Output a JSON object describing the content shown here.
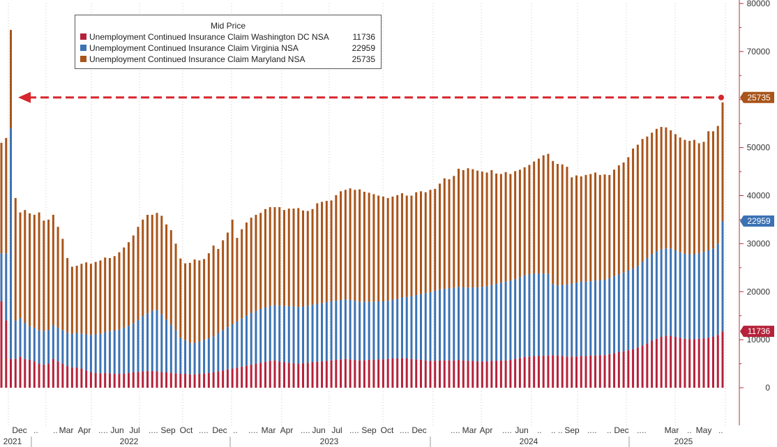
{
  "chart_data": {
    "type": "bar",
    "stacked": true,
    "title": "Mid Price",
    "y_axis": {
      "position": "right",
      "ylim": [
        -8000,
        80000
      ],
      "ticks": [
        0,
        10000,
        20000,
        30000,
        40000,
        50000,
        60000,
        70000,
        80000
      ]
    },
    "x_month_labels": [
      "Dec",
      "Mar",
      "Apr",
      "Jun",
      "Jul",
      "Sep",
      "Oct",
      "Dec",
      "Mar",
      "Apr",
      "Jun",
      "Jul",
      "Sep",
      "Oct",
      "Dec",
      "Mar",
      "Apr",
      "Jun",
      "Sep",
      "Dec",
      "Mar",
      "May"
    ],
    "x_year_labels": [
      "2021",
      "2022",
      "2023",
      "2024",
      "2025"
    ],
    "series": [
      {
        "name": "Unemployment Continued Insurance Claim Washington DC NSA",
        "color": "#b5213a",
        "last_value": "11736",
        "values": [
          18000,
          14000,
          6000,
          6000,
          6500,
          6000,
          5800,
          5500,
          5000,
          4800,
          5000,
          6000,
          5500,
          5000,
          4500,
          4200,
          4200,
          4000,
          3600,
          3200,
          3100,
          3000,
          3100,
          3000,
          2900,
          2900,
          3000,
          3100,
          3200,
          3300,
          3400,
          3500,
          3500,
          3400,
          3300,
          3200,
          3100,
          3000,
          2900,
          2900,
          2800,
          2800,
          2900,
          3000,
          3100,
          3200,
          3400,
          3600,
          3800,
          4000,
          4200,
          4400,
          4600,
          4800,
          5000,
          5200,
          5400,
          5600,
          5700,
          5500,
          5300,
          5200,
          5100,
          5000,
          5100,
          5200,
          5300,
          5400,
          5500,
          5600,
          5700,
          5800,
          5900,
          6000,
          5900,
          5800,
          5700,
          5700,
          5800,
          5800,
          5900,
          5900,
          6000,
          6100,
          6100,
          6200,
          6100,
          6000,
          5900,
          5800,
          5700,
          5600,
          5600,
          5700,
          5700,
          5700,
          5700,
          5800,
          5700,
          5600,
          5600,
          5500,
          5500,
          5500,
          5600,
          5600,
          5700,
          5700,
          5800,
          6000,
          6200,
          6400,
          6500,
          6600,
          6600,
          6700,
          6700,
          6800,
          6700,
          6600,
          6500,
          6500,
          6500,
          6600,
          6600,
          6700,
          6700,
          6800,
          6800,
          7000,
          7200,
          7400,
          7600,
          7800,
          8000,
          8400,
          8800,
          9200,
          9800,
          10200,
          10600,
          10800,
          10800,
          10600,
          10400,
          10200,
          10100,
          10100,
          10200,
          10300,
          10400,
          10600,
          11000,
          11736
        ]
      },
      {
        "name": "Unemployment Continued Insurance Claim Virginia NSA",
        "color": "#3c72b3",
        "last_value": "22959",
        "values": [
          10000,
          14000,
          48000,
          8000,
          8000,
          7500,
          7000,
          7000,
          7000,
          7000,
          7000,
          7000,
          7000,
          7000,
          7000,
          7000,
          7200,
          7300,
          7500,
          7800,
          8000,
          8200,
          8500,
          8800,
          9000,
          9200,
          9500,
          9800,
          10200,
          10800,
          11500,
          12000,
          12500,
          12800,
          12000,
          11000,
          10000,
          9000,
          7500,
          7000,
          6500,
          6500,
          6700,
          7000,
          7200,
          7500,
          8000,
          8400,
          8800,
          9200,
          9600,
          10000,
          10400,
          10800,
          11000,
          11200,
          11300,
          11400,
          11500,
          11600,
          11700,
          11800,
          11800,
          11800,
          11800,
          11900,
          12000,
          12100,
          12100,
          12200,
          12300,
          12300,
          12400,
          12400,
          12400,
          12300,
          12200,
          12200,
          12100,
          12100,
          12100,
          12100,
          12100,
          12200,
          12400,
          12600,
          12800,
          13100,
          13400,
          13700,
          14000,
          14300,
          14600,
          14800,
          14900,
          15000,
          15100,
          15200,
          15200,
          15200,
          15300,
          15400,
          15500,
          15600,
          15800,
          16000,
          16200,
          16400,
          16500,
          16600,
          16800,
          17000,
          17100,
          17200,
          17200,
          17100,
          17000,
          14800,
          14600,
          14800,
          15000,
          15200,
          15400,
          15500,
          15500,
          15500,
          15600,
          15600,
          15700,
          15800,
          16000,
          16200,
          16400,
          16600,
          16800,
          17000,
          17400,
          17800,
          18000,
          18200,
          18200,
          18200,
          18200,
          18000,
          17800,
          17700,
          17700,
          17700,
          17800,
          18000,
          18200,
          18400,
          19000,
          22959
        ]
      },
      {
        "name": "Unemployment Continued Insurance Claim Maryland NSA",
        "color": "#a9541a",
        "last_value": "25735",
        "values": [
          23000,
          24000,
          20500,
          25500,
          22000,
          23500,
          23500,
          23500,
          24500,
          23000,
          23000,
          23000,
          21000,
          19000,
          15500,
          14000,
          14000,
          14500,
          15000,
          14800,
          15100,
          15300,
          15500,
          15200,
          15500,
          16100,
          16700,
          17400,
          18300,
          19400,
          20100,
          20500,
          20000,
          20200,
          20500,
          19800,
          19700,
          18000,
          16500,
          16000,
          16700,
          17400,
          16900,
          16800,
          17700,
          18900,
          17500,
          18700,
          19700,
          21800,
          17400,
          18600,
          19400,
          19800,
          20000,
          20000,
          20500,
          20600,
          20400,
          20500,
          20000,
          20300,
          20400,
          20600,
          20000,
          19700,
          19900,
          20900,
          21100,
          21100,
          21000,
          22000,
          22600,
          22800,
          23200,
          23100,
          23400,
          22900,
          22700,
          22400,
          22000,
          21800,
          21400,
          21500,
          21600,
          21700,
          21100,
          20900,
          21400,
          21400,
          21000,
          21300,
          21200,
          22000,
          23000,
          22700,
          23300,
          24600,
          24400,
          24900,
          24600,
          24300,
          24000,
          23700,
          23900,
          23000,
          22600,
          22800,
          22200,
          22500,
          22400,
          22500,
          22800,
          23300,
          23900,
          24600,
          25000,
          25600,
          25300,
          25100,
          24500,
          22100,
          22300,
          21900,
          22200,
          22300,
          22500,
          21900,
          21900,
          21500,
          22200,
          22700,
          22900,
          23600,
          25000,
          25200,
          25600,
          25300,
          25300,
          25500,
          25500,
          25200,
          24600,
          24200,
          23900,
          23700,
          23600,
          23800,
          22900,
          22900,
          24800,
          24400,
          24500,
          24700,
          25000,
          25735
        ]
      }
    ]
  },
  "annotations": {
    "horizontal_line_value": 60430
  },
  "right_labels": [
    "25735",
    "22959",
    "11736"
  ]
}
